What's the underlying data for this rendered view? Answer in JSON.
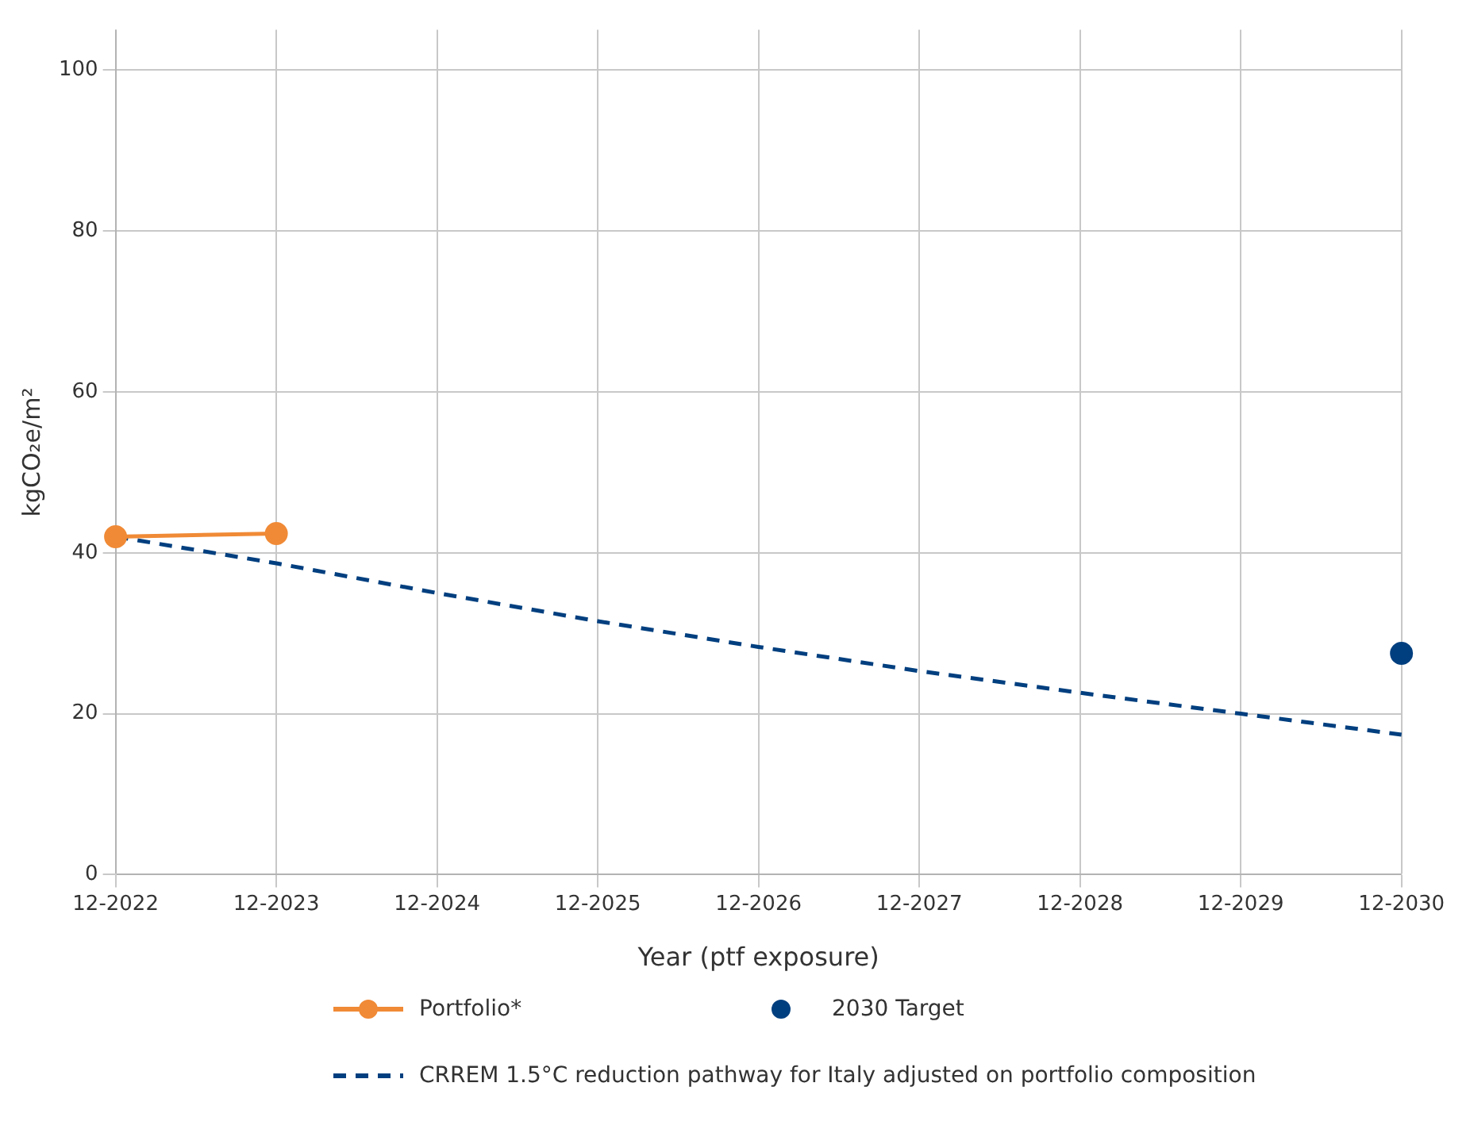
{
  "chart_data": {
    "type": "line",
    "xlabel": "Year (ptf exposure)",
    "ylabel": "kgCO₂e/m²",
    "categories": [
      "12-2022",
      "12-2023",
      "12-2024",
      "12-2025",
      "12-2026",
      "12-2027",
      "12-2028",
      "12-2029",
      "12-2030"
    ],
    "series": [
      {
        "name": "Portfolio*",
        "type": "line",
        "color": "#f08a36",
        "marker": "circle",
        "line_style": "solid",
        "values": [
          42,
          42.4,
          null,
          null,
          null,
          null,
          null,
          null,
          null
        ]
      },
      {
        "name": "2030 Target",
        "type": "scatter",
        "color": "#003f7f",
        "marker": "circle",
        "values": [
          null,
          null,
          null,
          null,
          null,
          null,
          null,
          null,
          27.5
        ]
      },
      {
        "name": "CRREM 1.5°C reduction pathway for Italy adjusted on portfolio composition",
        "type": "line",
        "color": "#003f7f",
        "marker": "none",
        "line_style": "dashed",
        "values": [
          42,
          38.7,
          35,
          31.5,
          28.3,
          25.3,
          22.6,
          20,
          17.4
        ]
      }
    ],
    "ylim": [
      0,
      105
    ],
    "yticks": [
      0,
      20,
      40,
      60,
      80,
      100
    ],
    "grid": true,
    "legend": "bottom"
  }
}
